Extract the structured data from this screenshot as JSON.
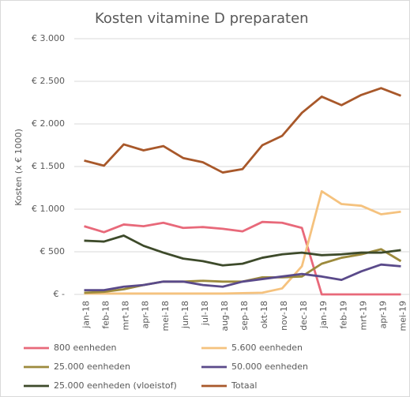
{
  "chart_data": {
    "type": "line",
    "title": "Kosten vitamine D preparaten",
    "y_label": "Kosten (x € 1000)",
    "categories": [
      "jan-18",
      "feb-18",
      "mrt-18",
      "apr-18",
      "mei-18",
      "jun-18",
      "jul-18",
      "aug-18",
      "sep-18",
      "okt-18",
      "nov-18",
      "dec-18",
      "jan-19",
      "feb-19",
      "mrt-19",
      "apr-19",
      "mei-19"
    ],
    "ylim": [
      0,
      3000
    ],
    "yticks": [
      {
        "value": 0,
        "label": "€ -"
      },
      {
        "value": 500,
        "label": "€ 500"
      },
      {
        "value": 1000,
        "label": "€ 1.000"
      },
      {
        "value": 1500,
        "label": "€ 1.500"
      },
      {
        "value": 2000,
        "label": "€ 2.000"
      },
      {
        "value": 2500,
        "label": "€ 2.500"
      },
      {
        "value": 3000,
        "label": "€ 3.000"
      }
    ],
    "grid": true,
    "series": [
      {
        "name": "800 eenheden",
        "color": "#e8697a",
        "values": [
          800,
          730,
          820,
          800,
          840,
          780,
          790,
          770,
          740,
          850,
          840,
          780,
          0,
          0,
          0,
          0,
          0
        ]
      },
      {
        "name": "5.600 eenheden",
        "color": "#f5c27e",
        "values": [
          10,
          10,
          10,
          10,
          10,
          10,
          10,
          10,
          15,
          20,
          70,
          330,
          1210,
          1060,
          1040,
          940,
          970
        ]
      },
      {
        "name": "25.000 eenheden",
        "color": "#9c8a3c",
        "values": [
          20,
          30,
          60,
          110,
          150,
          150,
          160,
          150,
          150,
          200,
          200,
          210,
          360,
          430,
          470,
          530,
          390
        ]
      },
      {
        "name": "50.000 eenheden",
        "color": "#5a4a8a",
        "values": [
          50,
          50,
          90,
          110,
          150,
          150,
          110,
          90,
          150,
          180,
          210,
          240,
          210,
          170,
          270,
          350,
          330
        ]
      },
      {
        "name": "25.000 eenheden (vloeistof)",
        "color": "#3d4a2a",
        "values": [
          630,
          620,
          690,
          570,
          490,
          420,
          390,
          340,
          360,
          430,
          470,
          490,
          460,
          470,
          490,
          490,
          520
        ]
      },
      {
        "name": "Totaal",
        "color": "#a8582a",
        "values": [
          1570,
          1510,
          1760,
          1690,
          1740,
          1600,
          1550,
          1430,
          1470,
          1750,
          1860,
          2130,
          2320,
          2220,
          2340,
          2420,
          2330
        ]
      }
    ]
  }
}
